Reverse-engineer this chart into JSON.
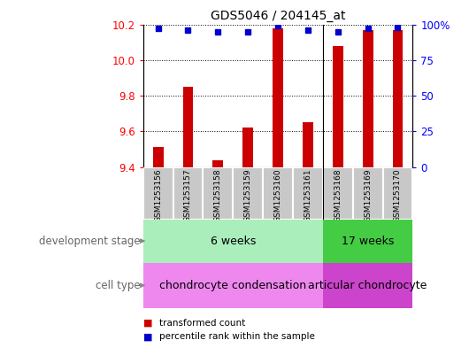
{
  "title": "GDS5046 / 204145_at",
  "samples": [
    "GSM1253156",
    "GSM1253157",
    "GSM1253158",
    "GSM1253159",
    "GSM1253160",
    "GSM1253161",
    "GSM1253168",
    "GSM1253169",
    "GSM1253170"
  ],
  "bar_values": [
    9.51,
    9.85,
    9.44,
    9.62,
    10.18,
    9.65,
    10.08,
    10.17,
    10.17
  ],
  "percentile_values": [
    97,
    96,
    95,
    95,
    99,
    96,
    95,
    97,
    98
  ],
  "ylim_left": [
    9.4,
    10.2
  ],
  "ylim_right": [
    0,
    100
  ],
  "bar_color": "#cc0000",
  "dot_color": "#0000cc",
  "stage_6weeks_label": "6 weeks",
  "stage_17weeks_label": "17 weeks",
  "cell_6weeks_label": "chondrocyte condensation",
  "cell_17weeks_label": "articular chondrocyte",
  "stage_6weeks_color": "#aaeebb",
  "stage_17weeks_color": "#44cc44",
  "cell_6weeks_color": "#ee88ee",
  "cell_17weeks_color": "#cc44cc",
  "stage_row_label": "development stage",
  "cell_row_label": "cell type",
  "legend_bar_label": "transformed count",
  "legend_dot_label": "percentile rank within the sample",
  "left_yticks": [
    9.4,
    9.6,
    9.8,
    10.0,
    10.2
  ],
  "right_yticks": [
    0,
    25,
    50,
    75,
    100
  ],
  "right_ytick_labels": [
    "0",
    "25",
    "50",
    "75",
    "100%"
  ],
  "n_6weeks": 6,
  "sample_box_color": "#c8c8c8",
  "sample_box_edge": "#ffffff"
}
